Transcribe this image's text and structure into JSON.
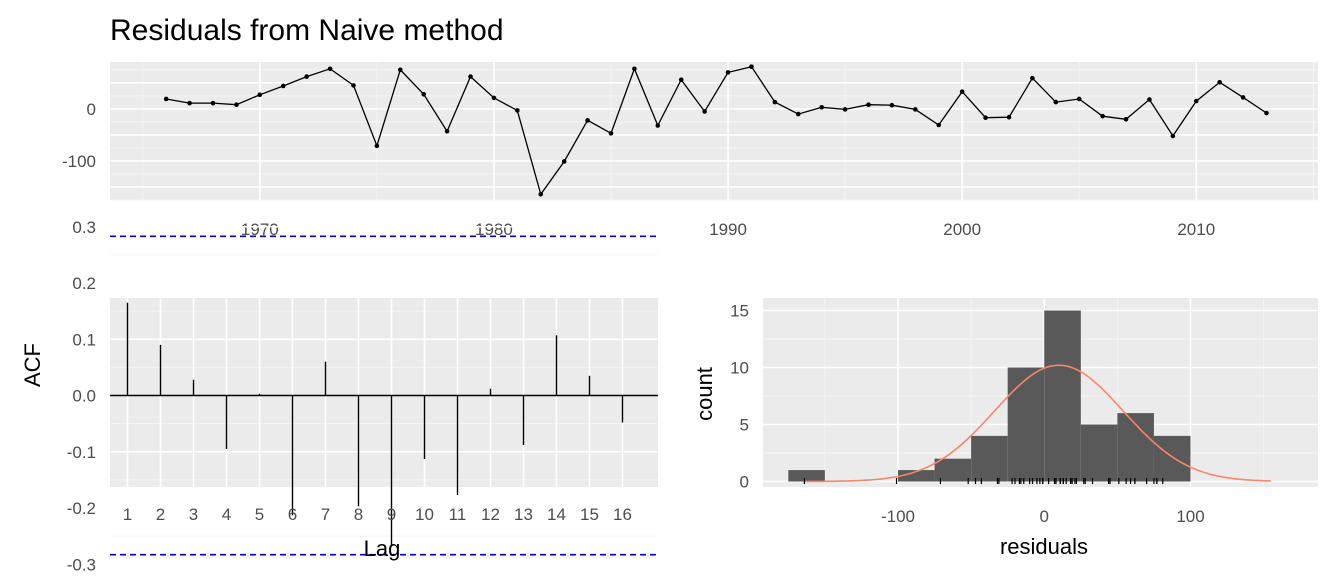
{
  "title": "Residuals from Naive method",
  "colors": {
    "panel": "#ebebeb",
    "grid_major": "#ffffff",
    "grid_minor": "#f5f5f5",
    "line": "#000000",
    "acf_ci": "#0000cc",
    "bar_fill": "#595959",
    "density": "#f8866a",
    "tick_text": "#4d4d4d"
  },
  "chart_data": [
    {
      "id": "residual-series",
      "type": "line",
      "xlabel": "",
      "ylabel": "",
      "xlim": [
        1963.6,
        2015.2
      ],
      "ylim": [
        -175,
        90
      ],
      "x_ticks": [
        1970,
        1980,
        1990,
        2000,
        2010
      ],
      "y_ticks": [
        0,
        -100
      ],
      "x": [
        1966,
        1967,
        1968,
        1969,
        1970,
        1971,
        1972,
        1973,
        1974,
        1975,
        1976,
        1977,
        1978,
        1979,
        1980,
        1981,
        1982,
        1983,
        1984,
        1985,
        1986,
        1987,
        1988,
        1989,
        1990,
        1991,
        1992,
        1993,
        1994,
        1995,
        1996,
        1997,
        1998,
        1999,
        2000,
        2001,
        2002,
        2003,
        2004,
        2005,
        2006,
        2007,
        2008,
        2009,
        2010,
        2011,
        2012,
        2013
      ],
      "values": [
        19,
        11,
        11,
        8,
        27,
        44,
        62,
        77,
        45,
        -71,
        75,
        28,
        -43,
        62,
        21,
        -3,
        -164,
        -101,
        -22,
        -47,
        77,
        -32,
        56,
        -5,
        70,
        81,
        13,
        -10,
        3,
        -1,
        8,
        7,
        -1,
        -31,
        33,
        -17,
        -16,
        59,
        13,
        19,
        -14,
        -20,
        18,
        -52,
        15,
        51,
        22,
        -8
      ],
      "grid": true
    },
    {
      "id": "acf",
      "type": "bar",
      "xlabel": "Lag",
      "ylabel": "ACF",
      "ylim": [
        -0.3,
        0.3
      ],
      "y_ticks": [
        0.3,
        0.2,
        0.1,
        0.0,
        -0.1,
        -0.2,
        -0.3
      ],
      "y_tick_labels": [
        "0.3",
        "0.2",
        "0.1",
        "0.0",
        "-0.1",
        "-0.2",
        "-0.3"
      ],
      "categories": [
        "1",
        "2",
        "3",
        "4",
        "5",
        "6",
        "7",
        "8",
        "9",
        "10",
        "11",
        "12",
        "13",
        "14",
        "15",
        "16"
      ],
      "values": [
        0.165,
        0.09,
        0.028,
        -0.095,
        0.003,
        -0.213,
        0.06,
        -0.197,
        -0.268,
        -0.113,
        -0.177,
        0.012,
        -0.088,
        0.107,
        0.035,
        -0.048
      ],
      "ci": 0.283,
      "grid": true
    },
    {
      "id": "histogram",
      "type": "bar",
      "xlabel": "residuals",
      "ylabel": "count",
      "xlim": [
        -183,
        185
      ],
      "ylim": [
        -0.5,
        16
      ],
      "x_ticks": [
        -100,
        0,
        100
      ],
      "x_tick_labels": [
        "-100",
        "0",
        "100"
      ],
      "y_ticks": [
        0,
        5,
        10,
        15
      ],
      "y_tick_labels": [
        "0",
        "5",
        "10",
        "15"
      ],
      "bin_width": 25,
      "bins": [
        {
          "start": -175,
          "count": 1
        },
        {
          "start": -100,
          "count": 1
        },
        {
          "start": -75,
          "count": 2
        },
        {
          "start": -50,
          "count": 4
        },
        {
          "start": -25,
          "count": 10
        },
        {
          "start": 0,
          "count": 15
        },
        {
          "start": 25,
          "count": 5
        },
        {
          "start": 50,
          "count": 6
        },
        {
          "start": 75,
          "count": 4
        }
      ],
      "density": {
        "mean": 10,
        "sd": 44,
        "peak": 10.2,
        "from": -165,
        "to": 155
      },
      "rug": [
        -164,
        -101,
        -71,
        -52,
        -47,
        -43,
        -32,
        -31,
        -22,
        -20,
        -17,
        -16,
        -14,
        -10,
        -8,
        -5,
        -3,
        -1,
        -1,
        3,
        7,
        8,
        8,
        11,
        11,
        13,
        13,
        15,
        18,
        19,
        19,
        21,
        22,
        27,
        28,
        33,
        44,
        45,
        51,
        56,
        59,
        62,
        62,
        70,
        75,
        77,
        77,
        81
      ],
      "grid": true
    }
  ]
}
